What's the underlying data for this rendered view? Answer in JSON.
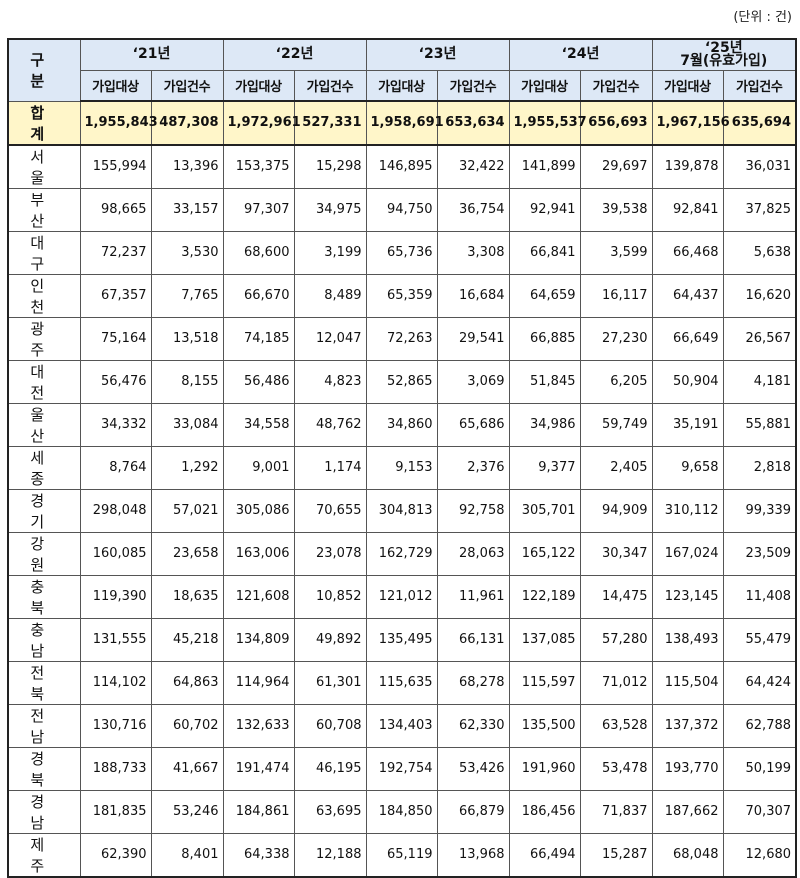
{
  "unit_note": "(단위 : 건)",
  "header": {
    "region_label": "구 분",
    "years": [
      "‘21년",
      "‘22년",
      "‘23년",
      "‘24년",
      "‘25년\n7월(유효가입)"
    ],
    "sub_labels": [
      "가입대상",
      "가입건수"
    ]
  },
  "rows": [
    {
      "region": "합 계",
      "values": [
        "1,955,843",
        "487,308",
        "1,972,961",
        "527,331",
        "1,958,691",
        "653,634",
        "1,955,537",
        "656,693",
        "1,967,156",
        "635,694"
      ]
    },
    {
      "region": "서 울",
      "values": [
        "155,994",
        "13,396",
        "153,375",
        "15,298",
        "146,895",
        "32,422",
        "141,899",
        "29,697",
        "139,878",
        "36,031"
      ]
    },
    {
      "region": "부 산",
      "values": [
        "98,665",
        "33,157",
        "97,307",
        "34,975",
        "94,750",
        "36,754",
        "92,941",
        "39,538",
        "92,841",
        "37,825"
      ]
    },
    {
      "region": "대 구",
      "values": [
        "72,237",
        "3,530",
        "68,600",
        "3,199",
        "65,736",
        "3,308",
        "66,841",
        "3,599",
        "66,468",
        "5,638"
      ]
    },
    {
      "region": "인 천",
      "values": [
        "67,357",
        "7,765",
        "66,670",
        "8,489",
        "65,359",
        "16,684",
        "64,659",
        "16,117",
        "64,437",
        "16,620"
      ]
    },
    {
      "region": "광 주",
      "values": [
        "75,164",
        "13,518",
        "74,185",
        "12,047",
        "72,263",
        "29,541",
        "66,885",
        "27,230",
        "66,649",
        "26,567"
      ]
    },
    {
      "region": "대 전",
      "values": [
        "56,476",
        "8,155",
        "56,486",
        "4,823",
        "52,865",
        "3,069",
        "51,845",
        "6,205",
        "50,904",
        "4,181"
      ]
    },
    {
      "region": "울 산",
      "values": [
        "34,332",
        "33,084",
        "34,558",
        "48,762",
        "34,860",
        "65,686",
        "34,986",
        "59,749",
        "35,191",
        "55,881"
      ]
    },
    {
      "region": "세 종",
      "values": [
        "8,764",
        "1,292",
        "9,001",
        "1,174",
        "9,153",
        "2,376",
        "9,377",
        "2,405",
        "9,658",
        "2,818"
      ]
    },
    {
      "region": "경 기",
      "values": [
        "298,048",
        "57,021",
        "305,086",
        "70,655",
        "304,813",
        "92,758",
        "305,701",
        "94,909",
        "310,112",
        "99,339"
      ]
    },
    {
      "region": "강 원",
      "values": [
        "160,085",
        "23,658",
        "163,006",
        "23,078",
        "162,729",
        "28,063",
        "165,122",
        "30,347",
        "167,024",
        "23,509"
      ]
    },
    {
      "region": "충 북",
      "values": [
        "119,390",
        "18,635",
        "121,608",
        "10,852",
        "121,012",
        "11,961",
        "122,189",
        "14,475",
        "123,145",
        "11,408"
      ]
    },
    {
      "region": "충 남",
      "values": [
        "131,555",
        "45,218",
        "134,809",
        "49,892",
        "135,495",
        "66,131",
        "137,085",
        "57,280",
        "138,493",
        "55,479"
      ]
    },
    {
      "region": "전 북",
      "values": [
        "114,102",
        "64,863",
        "114,964",
        "61,301",
        "115,635",
        "68,278",
        "115,597",
        "71,012",
        "115,504",
        "64,424"
      ]
    },
    {
      "region": "전 남",
      "values": [
        "130,716",
        "60,702",
        "132,633",
        "60,708",
        "134,403",
        "62,330",
        "135,500",
        "63,528",
        "137,372",
        "62,788"
      ]
    },
    {
      "region": "경 북",
      "values": [
        "188,733",
        "41,667",
        "191,474",
        "46,195",
        "192,754",
        "53,426",
        "191,960",
        "53,478",
        "193,770",
        "50,199"
      ]
    },
    {
      "region": "경 남",
      "values": [
        "181,835",
        "53,246",
        "184,861",
        "63,695",
        "184,850",
        "66,879",
        "186,456",
        "71,837",
        "187,662",
        "70,307"
      ]
    },
    {
      "region": "제 주",
      "values": [
        "62,390",
        "8,401",
        "64,338",
        "12,188",
        "65,119",
        "13,968",
        "66,494",
        "15,287",
        "68,048",
        "12,680"
      ]
    }
  ]
}
